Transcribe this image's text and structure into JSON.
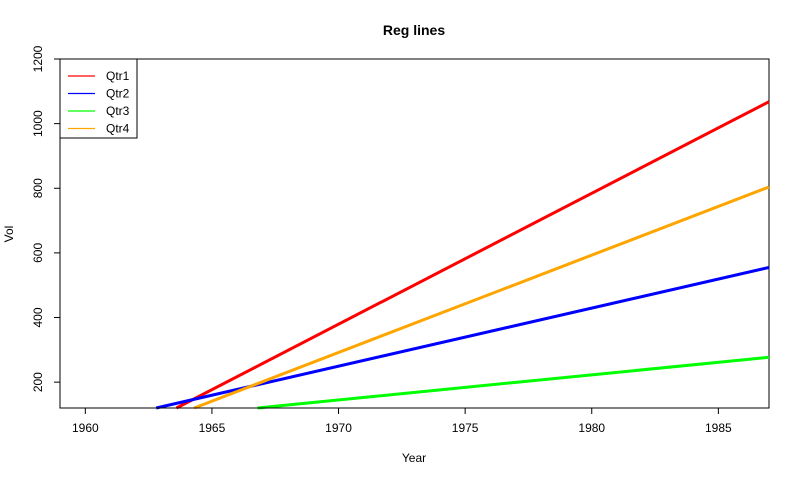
{
  "chart_data": {
    "type": "line",
    "title": "Reg lines",
    "xlabel": "Year",
    "ylabel": "Vol",
    "xlim": [
      1959,
      1987
    ],
    "ylim": [
      120,
      1200
    ],
    "xticks": [
      "1960",
      "1965",
      "1970",
      "1975",
      "1980",
      "1985"
    ],
    "yticks": [
      "200",
      "400",
      "600",
      "800",
      "1000",
      "1200"
    ],
    "grid": false,
    "legend_position": "top-left",
    "series": [
      {
        "name": "Qtr1",
        "color": "#ff0000",
        "x": [
          1963.6,
          1987
        ],
        "y": [
          120,
          1068
        ]
      },
      {
        "name": "Qtr2",
        "color": "#0000ff",
        "x": [
          1962.8,
          1987
        ],
        "y": [
          120,
          555
        ]
      },
      {
        "name": "Qtr3",
        "color": "#00ff00",
        "x": [
          1966.8,
          1987
        ],
        "y": [
          120,
          277
        ]
      },
      {
        "name": "Qtr4",
        "color": "#ffa500",
        "x": [
          1964.3,
          1987
        ],
        "y": [
          120,
          804
        ]
      }
    ]
  }
}
